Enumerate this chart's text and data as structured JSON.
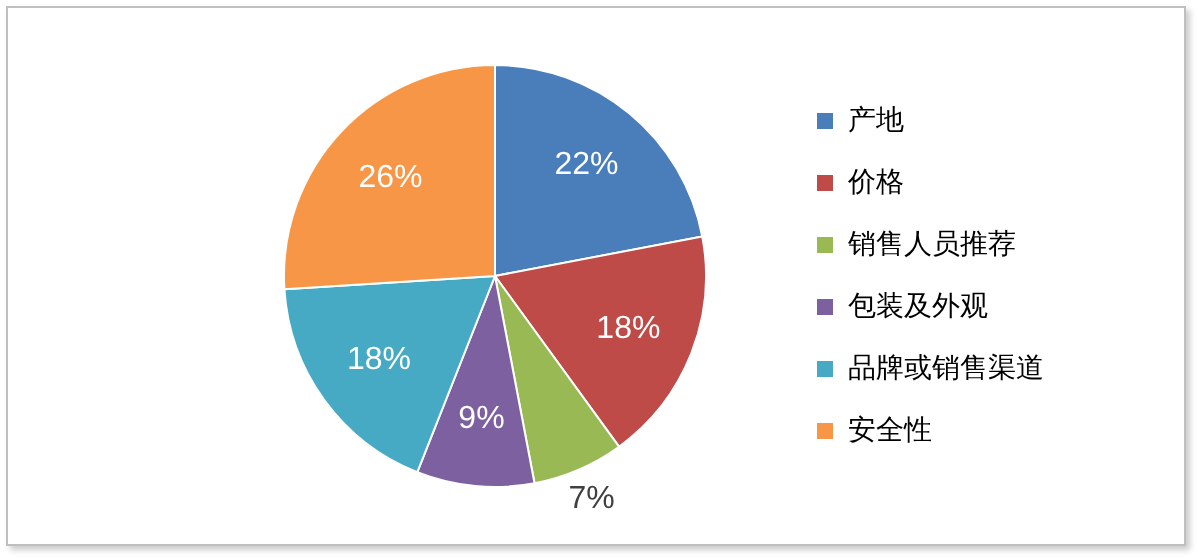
{
  "chart_data": {
    "type": "pie",
    "categories": [
      "产地",
      "价格",
      "销售人员推荐",
      "包装及外观",
      "品牌或销售渠道",
      "安全性"
    ],
    "values": [
      22,
      18,
      7,
      9,
      18,
      26
    ],
    "colors": [
      "#4a7ebb",
      "#be4b48",
      "#98b954",
      "#7d60a0",
      "#46aac5",
      "#f79646"
    ],
    "value_labels": [
      "22%",
      "18%",
      "7%",
      "9%",
      "18%",
      "26%"
    ],
    "legend": "right"
  }
}
